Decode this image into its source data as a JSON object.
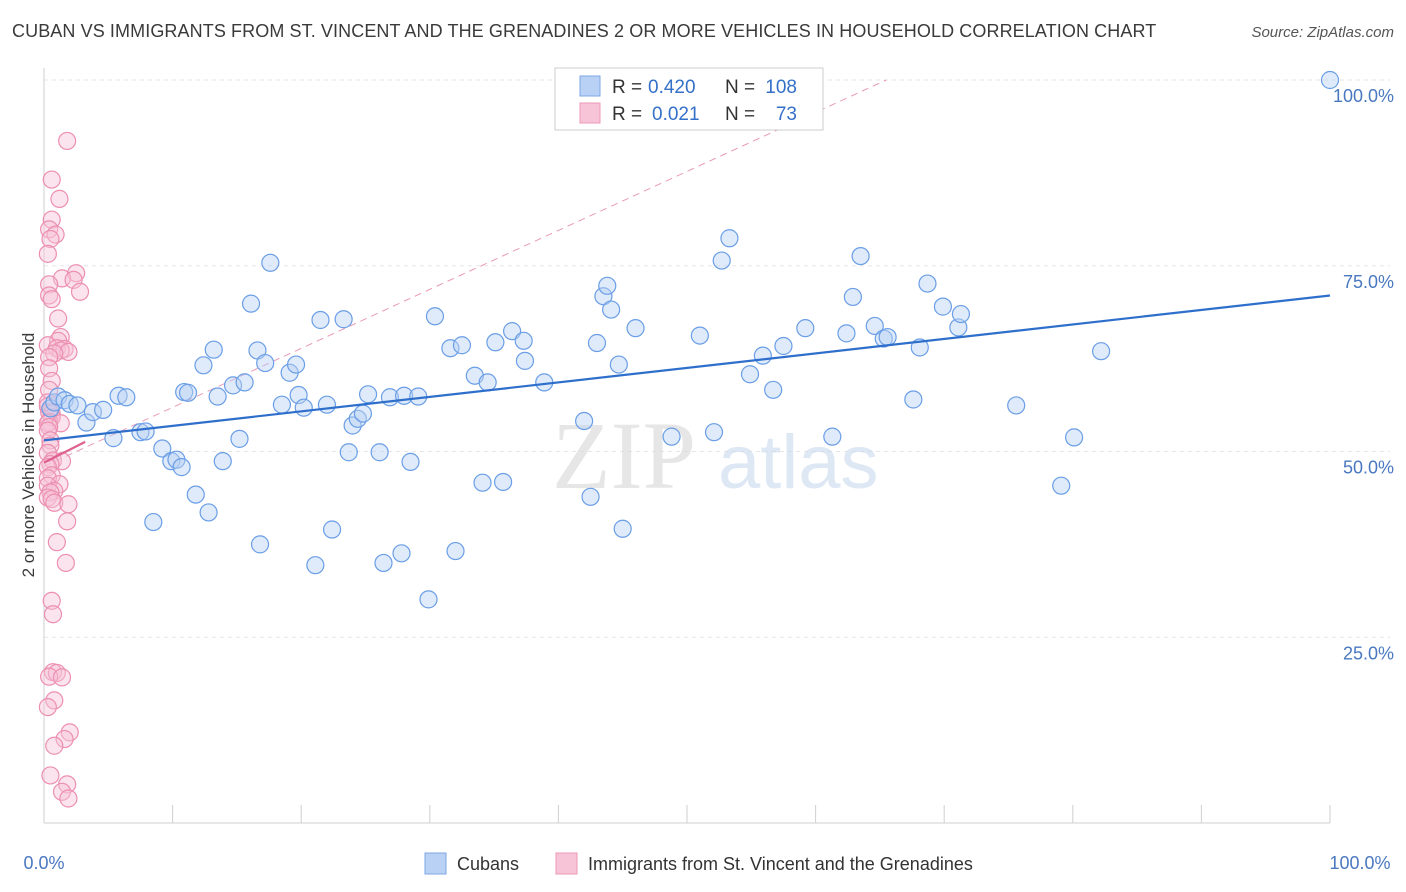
{
  "title": "CUBAN VS IMMIGRANTS FROM ST. VINCENT AND THE GRENADINES 2 OR MORE VEHICLES IN HOUSEHOLD CORRELATION CHART",
  "source": "Source: ZipAtlas.com",
  "watermark": {
    "zip": "ZIP",
    "atlas": "atlas"
  },
  "legend_box": {
    "rows": [
      {
        "r_label": "R = ",
        "r_value": "0.420",
        "n_label": "N = ",
        "n_value": "108"
      },
      {
        "r_label": "R = ",
        "r_value": "0.021",
        "n_label": "N = ",
        "n_value": "73"
      }
    ]
  },
  "chart_data": {
    "type": "scatter",
    "title": "CUBAN VS IMMIGRANTS FROM ST. VINCENT AND THE GRENADINES 2 OR MORE VEHICLES IN HOUSEHOLD CORRELATION CHART",
    "xlabel": "",
    "ylabel": "2 or more Vehicles in Household",
    "xlim": [
      0,
      100
    ],
    "ylim": [
      0,
      100
    ],
    "x_tick_labels": [
      "0.0%",
      "100.0%"
    ],
    "y_ticks": [
      25,
      50,
      75,
      100
    ],
    "y_tick_labels": [
      "25.0%",
      "50.0%",
      "75.0%",
      "100.0%"
    ],
    "grid": true,
    "legend_position": "bottom",
    "colors": {
      "cubans": "#6a9ee6",
      "cubans_line": "#2f6fcc",
      "svg_immigrants": "#ee8fb0",
      "svg_line": "#e0608f"
    },
    "series": [
      {
        "name": "Cubans",
        "trend": {
          "x": [
            0,
            100
          ],
          "y": [
            51.5,
            71.0
          ]
        },
        "points": [
          [
            0.5,
            55.8
          ],
          [
            0.8,
            56.6
          ],
          [
            1.1,
            57.4
          ],
          [
            1.6,
            56.9
          ],
          [
            2.0,
            56.4
          ],
          [
            2.6,
            56.2
          ],
          [
            3.3,
            53.9
          ],
          [
            3.8,
            55.3
          ],
          [
            4.6,
            55.6
          ],
          [
            5.4,
            51.8
          ],
          [
            5.8,
            57.5
          ],
          [
            6.4,
            57.3
          ],
          [
            7.5,
            52.6
          ],
          [
            7.9,
            52.7
          ],
          [
            8.5,
            40.5
          ],
          [
            9.2,
            50.4
          ],
          [
            9.9,
            48.7
          ],
          [
            10.3,
            48.9
          ],
          [
            10.7,
            47.9
          ],
          [
            10.9,
            58.0
          ],
          [
            11.2,
            57.9
          ],
          [
            11.8,
            44.2
          ],
          [
            12.4,
            61.6
          ],
          [
            12.8,
            41.8
          ],
          [
            13.2,
            63.7
          ],
          [
            13.5,
            57.4
          ],
          [
            13.9,
            48.7
          ],
          [
            14.7,
            58.9
          ],
          [
            15.2,
            51.7
          ],
          [
            15.6,
            59.3
          ],
          [
            16.1,
            69.9
          ],
          [
            16.6,
            63.6
          ],
          [
            16.8,
            37.5
          ],
          [
            17.2,
            61.9
          ],
          [
            17.6,
            75.4
          ],
          [
            18.5,
            56.3
          ],
          [
            19.1,
            60.6
          ],
          [
            19.6,
            61.7
          ],
          [
            19.8,
            57.6
          ],
          [
            20.2,
            55.9
          ],
          [
            21.1,
            34.7
          ],
          [
            21.5,
            67.7
          ],
          [
            22.0,
            56.3
          ],
          [
            22.4,
            39.5
          ],
          [
            23.3,
            67.8
          ],
          [
            23.7,
            49.9
          ],
          [
            24.0,
            53.5
          ],
          [
            24.4,
            54.4
          ],
          [
            24.8,
            55.1
          ],
          [
            25.2,
            57.7
          ],
          [
            26.1,
            49.9
          ],
          [
            26.4,
            35.0
          ],
          [
            26.9,
            57.3
          ],
          [
            27.8,
            36.3
          ],
          [
            28.0,
            57.5
          ],
          [
            28.5,
            48.6
          ],
          [
            29.1,
            57.4
          ],
          [
            29.9,
            30.1
          ],
          [
            30.4,
            68.2
          ],
          [
            31.6,
            63.9
          ],
          [
            32.0,
            36.6
          ],
          [
            32.5,
            64.3
          ],
          [
            33.5,
            60.2
          ],
          [
            34.1,
            45.8
          ],
          [
            34.5,
            59.3
          ],
          [
            35.1,
            64.7
          ],
          [
            35.7,
            45.9
          ],
          [
            36.4,
            66.2
          ],
          [
            37.3,
            64.9
          ],
          [
            37.4,
            62.2
          ],
          [
            38.9,
            59.3
          ],
          [
            42.0,
            54.1
          ],
          [
            42.5,
            43.9
          ],
          [
            43.0,
            64.6
          ],
          [
            43.5,
            70.9
          ],
          [
            43.8,
            72.3
          ],
          [
            44.1,
            69.1
          ],
          [
            44.7,
            61.7
          ],
          [
            45.0,
            39.6
          ],
          [
            46.0,
            66.6
          ],
          [
            48.8,
            52.0
          ],
          [
            51.0,
            65.6
          ],
          [
            52.1,
            52.6
          ],
          [
            52.7,
            75.7
          ],
          [
            53.3,
            78.7
          ],
          [
            54.9,
            60.4
          ],
          [
            55.9,
            62.9
          ],
          [
            56.7,
            58.3
          ],
          [
            57.5,
            64.2
          ],
          [
            59.2,
            66.6
          ],
          [
            61.3,
            52.0
          ],
          [
            62.4,
            65.9
          ],
          [
            62.9,
            70.8
          ],
          [
            63.5,
            76.3
          ],
          [
            64.6,
            66.9
          ],
          [
            65.3,
            65.2
          ],
          [
            65.6,
            65.4
          ],
          [
            67.6,
            57.0
          ],
          [
            68.1,
            64.0
          ],
          [
            68.7,
            72.6
          ],
          [
            69.9,
            69.5
          ],
          [
            71.1,
            66.7
          ],
          [
            71.3,
            68.5
          ],
          [
            75.6,
            56.2
          ],
          [
            79.1,
            45.4
          ],
          [
            80.1,
            51.9
          ],
          [
            82.2,
            63.5
          ],
          [
            100.0,
            100.0
          ]
        ]
      },
      {
        "name": "Immigrants from St. Vincent and the Grenadines",
        "trend": {
          "x": [
            0,
            3.2
          ],
          "y": [
            48.5,
            51.3
          ]
        },
        "points": [
          [
            1.8,
            91.8
          ],
          [
            0.6,
            86.6
          ],
          [
            1.2,
            84.0
          ],
          [
            0.6,
            81.2
          ],
          [
            0.4,
            79.9
          ],
          [
            0.9,
            79.2
          ],
          [
            0.5,
            78.6
          ],
          [
            0.3,
            76.6
          ],
          [
            2.5,
            74.0
          ],
          [
            1.4,
            73.3
          ],
          [
            2.3,
            73.1
          ],
          [
            0.4,
            72.5
          ],
          [
            2.8,
            71.5
          ],
          [
            0.4,
            71.0
          ],
          [
            0.6,
            70.5
          ],
          [
            1.1,
            67.9
          ],
          [
            1.3,
            65.4
          ],
          [
            1.1,
            64.9
          ],
          [
            0.3,
            64.3
          ],
          [
            1.0,
            63.9
          ],
          [
            1.6,
            63.8
          ],
          [
            1.3,
            63.6
          ],
          [
            1.9,
            63.4
          ],
          [
            0.8,
            63.2
          ],
          [
            0.4,
            62.7
          ],
          [
            0.4,
            61.2
          ],
          [
            0.6,
            59.5
          ],
          [
            0.4,
            58.3
          ],
          [
            0.3,
            56.6
          ],
          [
            0.3,
            56.1
          ],
          [
            0.4,
            55.3
          ],
          [
            0.6,
            55.1
          ],
          [
            0.6,
            54.6
          ],
          [
            0.4,
            54.0
          ],
          [
            0.3,
            53.8
          ],
          [
            1.3,
            53.8
          ],
          [
            0.4,
            53.3
          ],
          [
            0.3,
            52.8
          ],
          [
            0.5,
            51.5
          ],
          [
            0.5,
            50.8
          ],
          [
            0.3,
            49.8
          ],
          [
            0.7,
            48.8
          ],
          [
            1.4,
            48.7
          ],
          [
            0.5,
            48.3
          ],
          [
            0.3,
            47.9
          ],
          [
            0.6,
            46.8
          ],
          [
            0.3,
            46.4
          ],
          [
            1.2,
            45.6
          ],
          [
            0.3,
            45.4
          ],
          [
            0.8,
            44.7
          ],
          [
            0.5,
            44.5
          ],
          [
            0.3,
            43.8
          ],
          [
            0.6,
            43.6
          ],
          [
            0.8,
            43.1
          ],
          [
            1.9,
            42.9
          ],
          [
            1.8,
            40.6
          ],
          [
            1.0,
            37.8
          ],
          [
            1.7,
            35.0
          ],
          [
            0.6,
            29.9
          ],
          [
            0.7,
            28.1
          ],
          [
            0.7,
            20.3
          ],
          [
            1.0,
            20.2
          ],
          [
            0.4,
            19.7
          ],
          [
            1.4,
            19.6
          ],
          [
            0.8,
            16.5
          ],
          [
            0.3,
            15.6
          ],
          [
            2.0,
            12.2
          ],
          [
            1.6,
            11.3
          ],
          [
            0.8,
            10.4
          ],
          [
            0.5,
            6.4
          ],
          [
            1.8,
            5.2
          ],
          [
            1.4,
            4.2
          ],
          [
            1.9,
            3.3
          ]
        ]
      }
    ],
    "reference_line": {
      "x": [
        0,
        65.5
      ],
      "y": [
        48.0,
        100.0
      ],
      "style": "dashed"
    }
  }
}
